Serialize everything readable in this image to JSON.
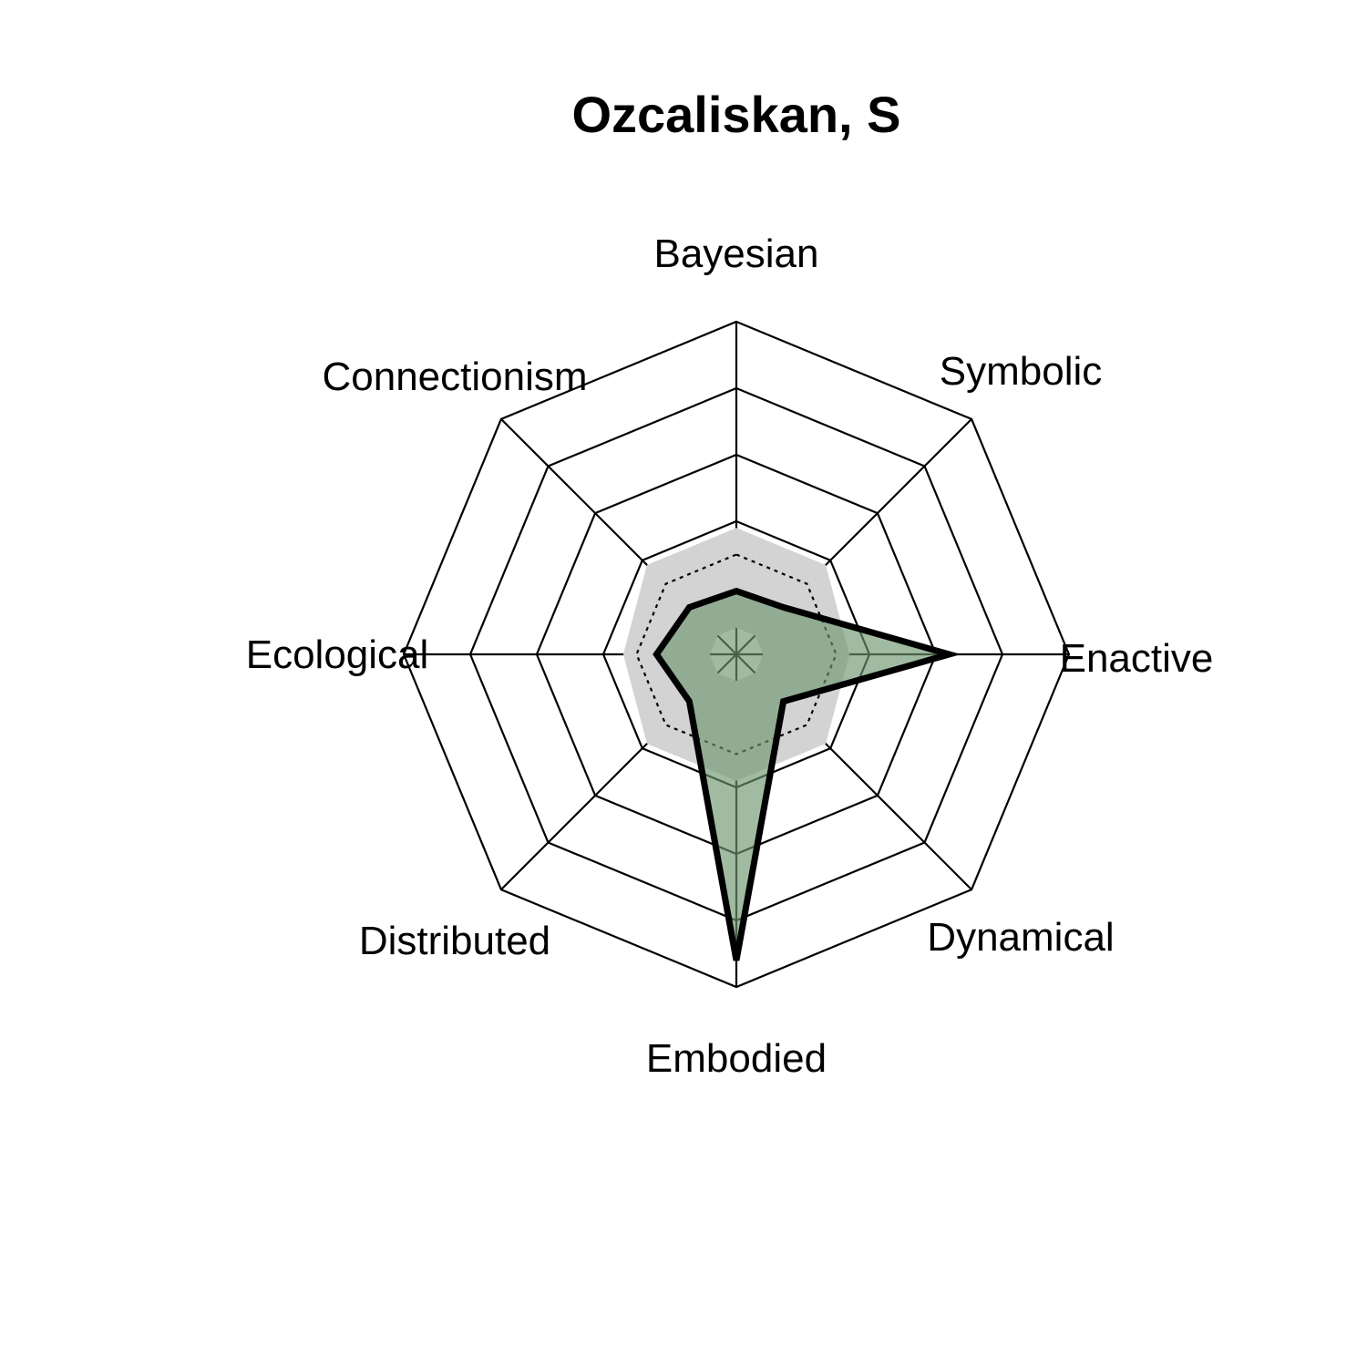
{
  "chart_data": {
    "type": "radar",
    "title": "Ozcaliskan, S",
    "axes": [
      "Bayesian",
      "Symbolic",
      "Enactive",
      "Dynamical",
      "Embodied",
      "Distributed",
      "Ecological",
      "Connectionism"
    ],
    "range": [
      0,
      5
    ],
    "rings": 5,
    "reference_band": [
      0.4,
      0.4,
      0.4,
      0.4,
      0.4,
      0.4,
      0.4,
      0.4
    ],
    "reference_dashed": [
      1.5,
      1.5,
      1.5,
      1.5,
      1.5,
      1.5,
      1.5,
      1.5
    ],
    "reference_fill": [
      1.9,
      1.9,
      1.7,
      1.9,
      1.9,
      1.9,
      1.7,
      1.9
    ],
    "series": [
      {
        "values": [
          0.95,
          1.0,
          3.2,
          1.0,
          4.6,
          1.0,
          1.2,
          1.0
        ],
        "color": "#5f8a62"
      }
    ],
    "colors": {
      "band_fill": "#d3d3d3",
      "series_fill": "#6f9670",
      "series_line": "#000000",
      "grid": "#000000"
    },
    "grid": true
  }
}
